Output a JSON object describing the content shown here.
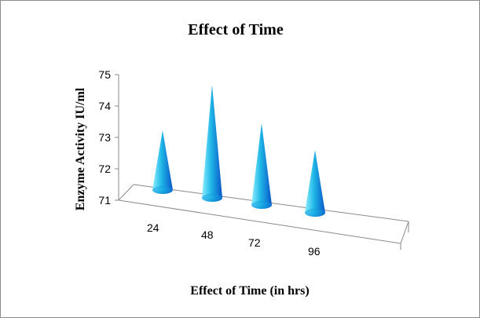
{
  "chart_data": {
    "type": "bar",
    "shape": "cone",
    "title": "Effect of Time",
    "xlabel": "Effect of Time (in hrs)",
    "ylabel": "Enzyme Activity IU/ml",
    "categories": [
      "24",
      "48",
      "72",
      "96"
    ],
    "values": [
      72.6,
      74.3,
      73.3,
      72.7
    ],
    "ylim": [
      71,
      75
    ],
    "yticks": [
      "71",
      "72",
      "73",
      "74",
      "75"
    ],
    "grid": false,
    "legend": "none",
    "colors": {
      "cone_light": "#8ef0ff",
      "cone_mid": "#1fb6e6",
      "cone_dark": "#0a55c8",
      "cone_base": "#0a7fd8"
    }
  }
}
